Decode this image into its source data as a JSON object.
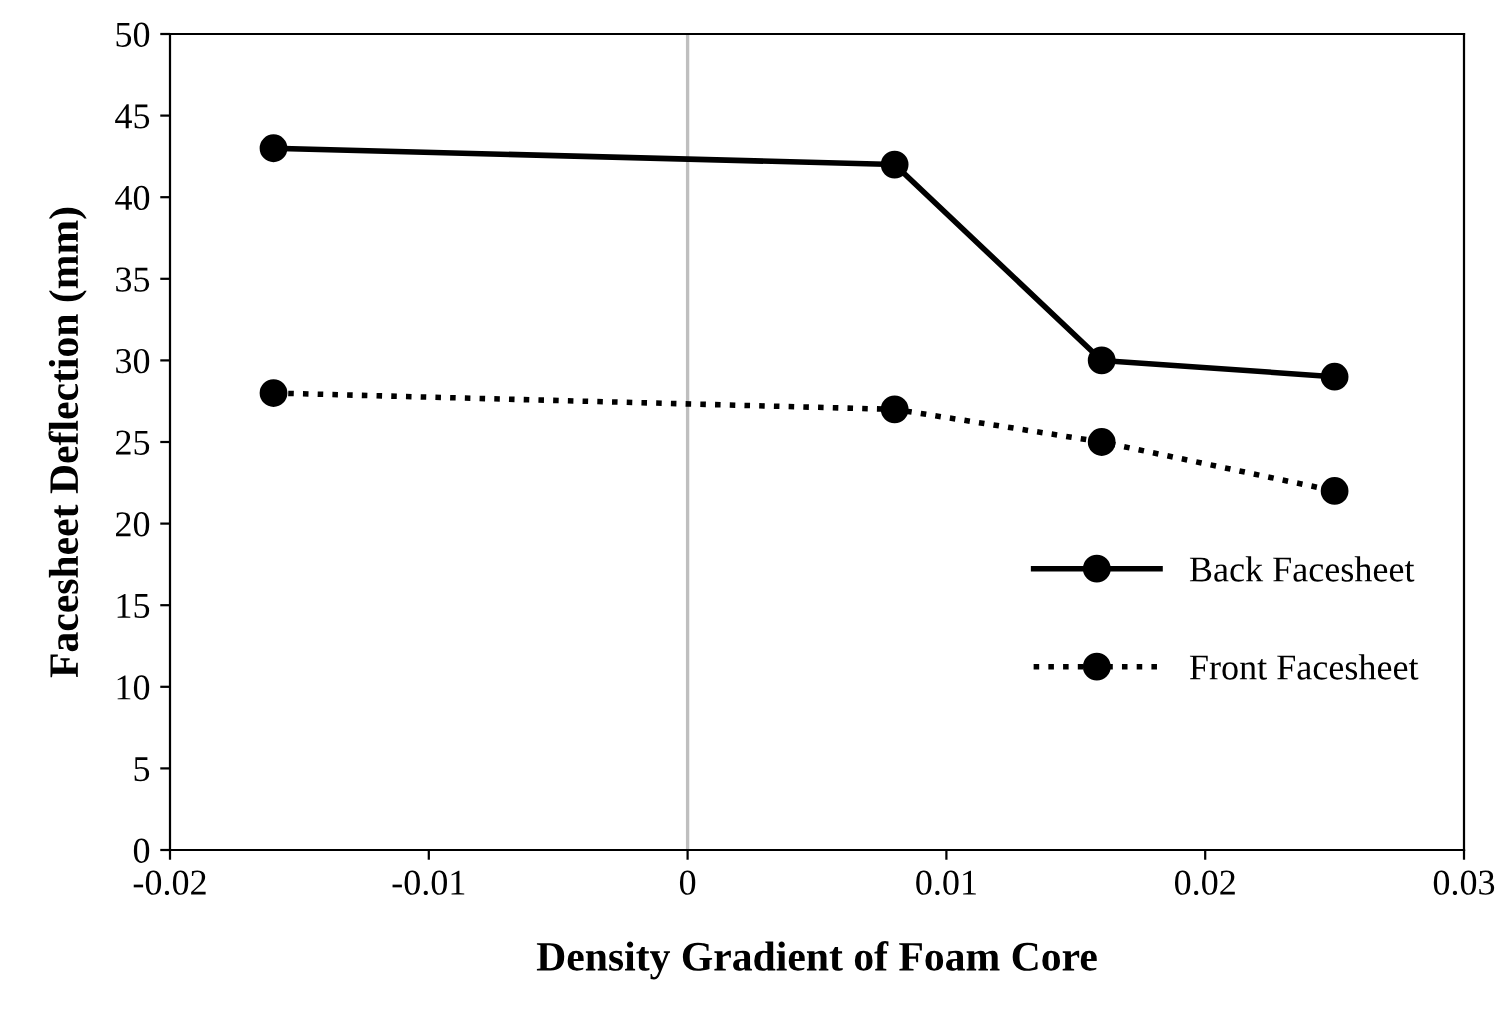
{
  "chart_data": {
    "type": "line",
    "xlabel": "Density Gradient of Foam Core",
    "ylabel": "Facesheet Deflection (mm)",
    "x": [
      -0.016,
      0.008,
      0.016,
      0.025
    ],
    "series": [
      {
        "name": "Back Facesheet",
        "color": "#000000",
        "values": [
          43,
          42,
          30,
          29
        ],
        "line_style": "solid"
      },
      {
        "name": "Front Facesheet",
        "color": "#000000",
        "values": [
          28,
          27,
          25,
          22
        ],
        "line_style": "dotted"
      }
    ],
    "marker": "circle",
    "xlim": [
      -0.02,
      0.03
    ],
    "xticks": [
      -0.02,
      -0.01,
      0,
      0.01,
      0.02,
      0.03
    ],
    "ylim": [
      0,
      50
    ],
    "yticks": [
      0,
      5,
      10,
      15,
      20,
      25,
      30,
      35,
      40,
      45,
      50
    ],
    "ref_lines": [
      {
        "axis": "x",
        "value": 0,
        "color": "#bfbfbf"
      }
    ],
    "grid": false,
    "legend": "right"
  }
}
